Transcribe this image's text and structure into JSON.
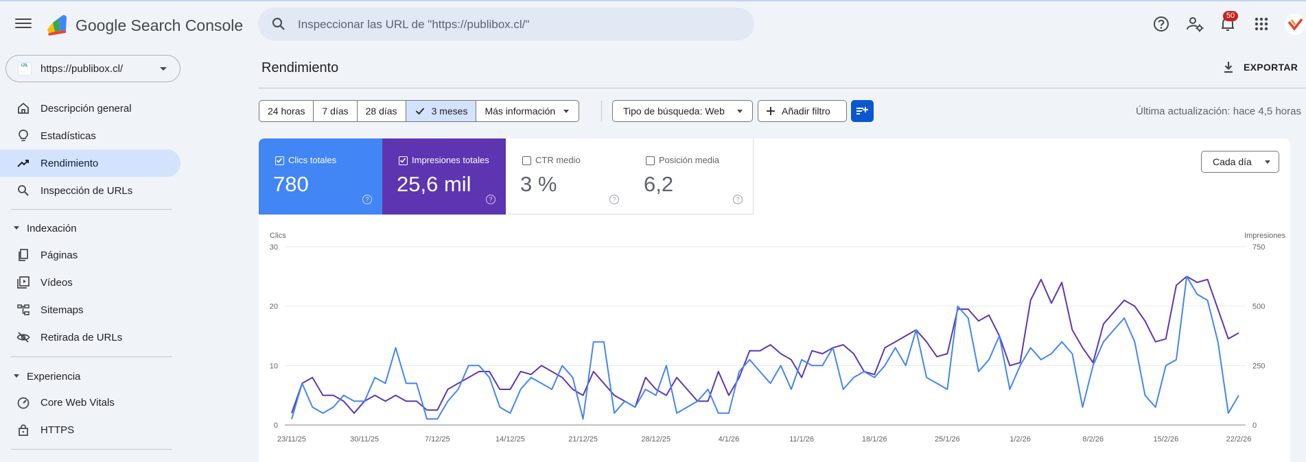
{
  "header": {
    "product_name": "Google Search Console",
    "search_placeholder": "Inspeccionar las URL de \"https://publibox.cl/\"",
    "notification_count": "50"
  },
  "sidebar": {
    "property_label": "https://publibox.cl/",
    "property_icon_text": "IJIL",
    "items_top": [
      {
        "label": "Descripción general",
        "icon": "home-icon"
      },
      {
        "label": "Estadísticas",
        "icon": "lightbulb-icon"
      },
      {
        "label": "Rendimiento",
        "icon": "trending-up-icon"
      },
      {
        "label": "Inspección de URLs",
        "icon": "search-icon"
      }
    ],
    "section_indexing": "Indexación",
    "items_indexing": [
      {
        "label": "Páginas",
        "icon": "pages-icon"
      },
      {
        "label": "Vídeos",
        "icon": "video-icon"
      },
      {
        "label": "Sitemaps",
        "icon": "sitemap-icon"
      },
      {
        "label": "Retirada de URLs",
        "icon": "eye-off-icon"
      }
    ],
    "section_experience": "Experiencia",
    "items_experience": [
      {
        "label": "Core Web Vitals",
        "icon": "gauge-icon"
      },
      {
        "label": "HTTPS",
        "icon": "lock-icon"
      }
    ]
  },
  "main": {
    "title": "Rendimiento",
    "export_label": "EXPORTAR",
    "date_ranges": [
      "24 horas",
      "7 días",
      "28 días",
      "3 meses"
    ],
    "more_info": "Más información",
    "search_type": "Tipo de búsqueda: Web",
    "add_filter": "Añadir filtro",
    "last_update": "Última actualización: hace 4,5 horas",
    "granularity": "Cada día"
  },
  "metrics": {
    "clicks": {
      "label": "Clics totales",
      "value": "780",
      "checked": true,
      "color": "#4285f4"
    },
    "impressions": {
      "label": "Impresiones totales",
      "value": "25,6 mil",
      "checked": true,
      "color": "#5e35b1"
    },
    "ctr": {
      "label": "CTR medio",
      "value": "3 %",
      "checked": false
    },
    "position": {
      "label": "Posición media",
      "value": "6,2",
      "checked": false
    }
  },
  "chart_data": {
    "type": "line",
    "left_axis": {
      "label": "Clics",
      "ticks": [
        0,
        10,
        20,
        30
      ],
      "ylim": [
        0,
        30
      ]
    },
    "right_axis": {
      "label": "Impresiones",
      "ticks": [
        0,
        250,
        500,
        750
      ],
      "ylim": [
        0,
        750
      ]
    },
    "x_tick_labels": [
      "23/11/25",
      "30/11/25",
      "7/12/25",
      "14/12/25",
      "21/12/25",
      "28/12/25",
      "4/1/26",
      "11/1/26",
      "18/1/26",
      "25/1/26",
      "1/2/26",
      "8/2/26",
      "15/2/26",
      "22/2/26"
    ],
    "grid": true,
    "series": [
      {
        "name": "Clics totales",
        "axis": "left",
        "color": "#4285f4",
        "values": [
          1,
          7,
          3,
          2,
          3,
          5,
          4,
          4,
          8,
          7,
          13,
          7,
          7,
          1,
          1,
          4,
          6,
          10,
          10,
          8,
          3,
          2,
          6,
          8,
          7,
          6,
          10,
          8,
          1,
          14,
          14,
          2,
          4,
          3,
          6,
          5,
          10,
          2,
          3,
          4,
          6,
          2,
          2,
          9,
          11,
          9,
          7,
          10,
          6,
          11,
          10,
          10,
          13,
          6,
          8,
          9,
          8,
          10,
          13,
          10,
          16,
          8,
          7,
          6,
          20,
          18,
          9,
          11,
          15,
          6,
          10,
          13,
          11,
          12,
          14,
          12,
          3,
          10,
          14,
          16,
          18,
          14,
          5,
          3,
          10,
          11,
          25,
          22,
          21,
          14,
          2,
          5
        ]
      },
      {
        "name": "Impresiones totales",
        "axis": "left",
        "color": "#5e35b1",
        "values": [
          2,
          7,
          8,
          5,
          5,
          4,
          2,
          4,
          5,
          4,
          5,
          4,
          4,
          2.5,
          2.5,
          6,
          7,
          8,
          9,
          9,
          6,
          6,
          9,
          8.5,
          10,
          9,
          8,
          6,
          5,
          9,
          7,
          5,
          4,
          3,
          8,
          6,
          5,
          8,
          6,
          4,
          4,
          9,
          5,
          8,
          12.5,
          12.5,
          13.5,
          12,
          11,
          8,
          12.5,
          12,
          13,
          13.5,
          12,
          9,
          8.5,
          13,
          14,
          15,
          16,
          14,
          11.5,
          12,
          19.5,
          19.5,
          17.5,
          18.5,
          15,
          10,
          10.5,
          21,
          24.5,
          20.5,
          24,
          16,
          13,
          10.5,
          17,
          19,
          21,
          20,
          17.5,
          14,
          14.5,
          23.5,
          25,
          24,
          24.5,
          19.5,
          14.5,
          15.5
        ]
      }
    ]
  }
}
